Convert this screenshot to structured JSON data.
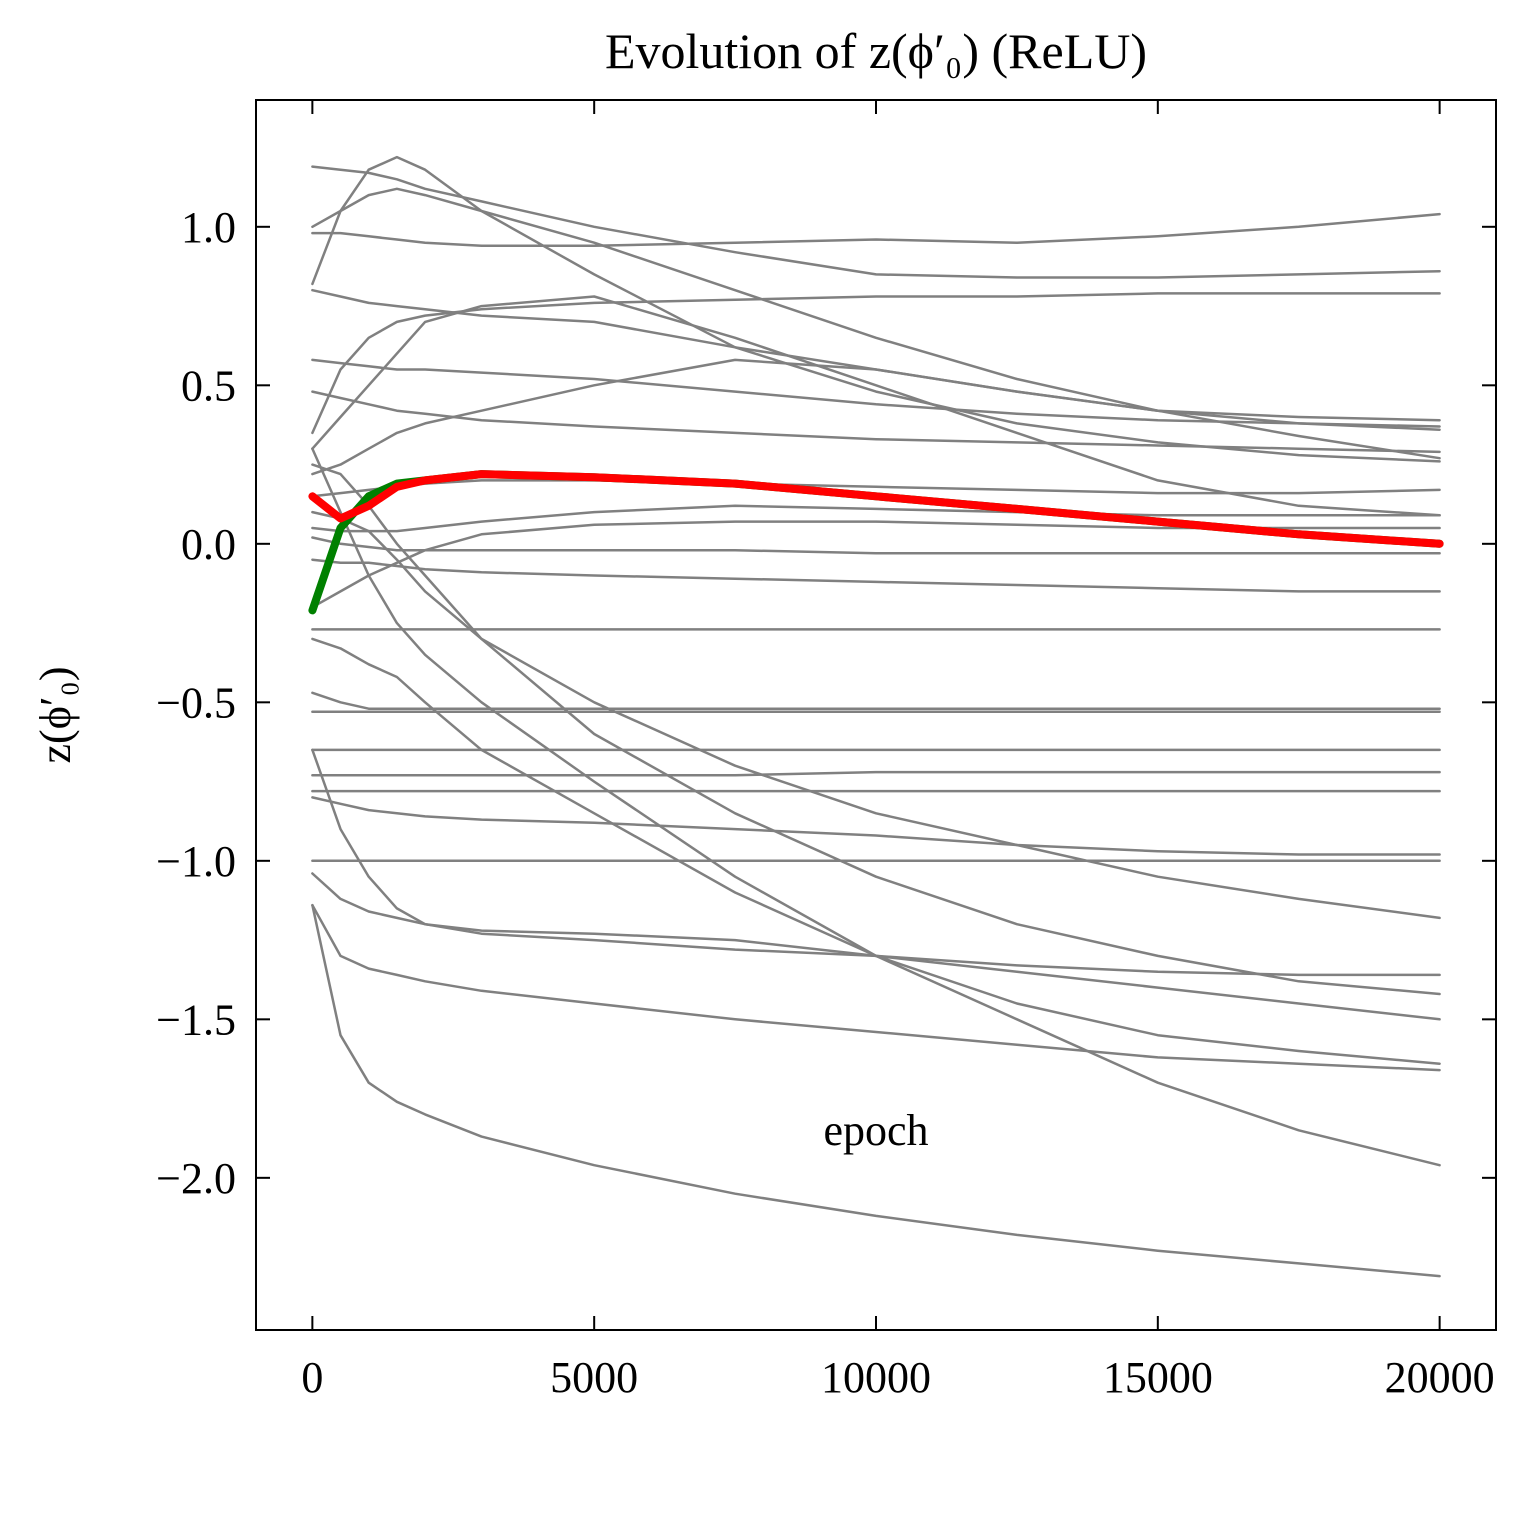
{
  "chart_data": {
    "type": "line",
    "title": "Evolution of z(ϕ′₀) (ReLU)",
    "xlabel": "epoch",
    "ylabel": "z(ϕ′₀)",
    "x": [
      0,
      500,
      1000,
      1500,
      2000,
      3000,
      5000,
      7500,
      10000,
      12500,
      15000,
      17500,
      20000
    ],
    "xlim": [
      -1000,
      21000
    ],
    "xticks": [
      0,
      5000,
      10000,
      15000,
      20000
    ],
    "ylim": [
      -2.48,
      1.4
    ],
    "yticks": [
      {
        "value": -2.0,
        "label": "−2.0"
      },
      {
        "value": -1.5,
        "label": "−1.5"
      },
      {
        "value": -1.0,
        "label": "−1.0"
      },
      {
        "value": -0.5,
        "label": "−0.5"
      },
      {
        "value": 0.0,
        "label": "0.0"
      },
      {
        "value": 0.5,
        "label": "0.5"
      },
      {
        "value": 1.0,
        "label": "1.0"
      }
    ],
    "grid": false,
    "series": [
      {
        "color": "#808080",
        "values": [
          1.19,
          1.18,
          1.17,
          1.15,
          1.12,
          1.08,
          1.0,
          0.92,
          0.85,
          0.84,
          0.84,
          0.85,
          0.86
        ]
      },
      {
        "color": "#808080",
        "values": [
          0.98,
          0.98,
          0.97,
          0.96,
          0.95,
          0.94,
          0.94,
          0.95,
          0.96,
          0.95,
          0.97,
          1.0,
          1.04
        ]
      },
      {
        "color": "#808080",
        "values": [
          0.82,
          1.05,
          1.18,
          1.22,
          1.18,
          1.05,
          0.85,
          0.62,
          0.48,
          0.38,
          0.32,
          0.28,
          0.26
        ]
      },
      {
        "color": "#808080",
        "values": [
          0.8,
          0.78,
          0.76,
          0.75,
          0.74,
          0.72,
          0.7,
          0.62,
          0.55,
          0.48,
          0.42,
          0.38,
          0.36
        ]
      },
      {
        "color": "#808080",
        "values": [
          0.35,
          0.55,
          0.65,
          0.7,
          0.72,
          0.74,
          0.76,
          0.77,
          0.78,
          0.78,
          0.79,
          0.79,
          0.79
        ]
      },
      {
        "color": "#808080",
        "values": [
          0.58,
          0.57,
          0.56,
          0.55,
          0.55,
          0.54,
          0.52,
          0.48,
          0.44,
          0.41,
          0.39,
          0.38,
          0.37
        ]
      },
      {
        "color": "#808080",
        "values": [
          0.48,
          0.46,
          0.44,
          0.42,
          0.41,
          0.39,
          0.37,
          0.35,
          0.33,
          0.32,
          0.31,
          0.3,
          0.29
        ]
      },
      {
        "color": "#808080",
        "values": [
          0.22,
          0.25,
          0.3,
          0.35,
          0.38,
          0.42,
          0.5,
          0.58,
          0.55,
          0.48,
          0.42,
          0.4,
          0.39
        ]
      },
      {
        "color": "#808080",
        "values": [
          0.15,
          0.16,
          0.17,
          0.18,
          0.19,
          0.2,
          0.2,
          0.19,
          0.18,
          0.17,
          0.16,
          0.16,
          0.17
        ]
      },
      {
        "color": "#808080",
        "values": [
          0.05,
          0.04,
          0.04,
          0.04,
          0.05,
          0.07,
          0.1,
          0.12,
          0.11,
          0.1,
          0.09,
          0.09,
          0.09
        ]
      },
      {
        "color": "#808080",
        "values": [
          0.02,
          0.0,
          -0.01,
          -0.02,
          -0.02,
          -0.02,
          -0.02,
          -0.02,
          -0.03,
          -0.03,
          -0.03,
          -0.03,
          -0.03
        ]
      },
      {
        "color": "#808080",
        "values": [
          -0.05,
          -0.06,
          -0.06,
          -0.07,
          -0.08,
          -0.09,
          -0.1,
          -0.11,
          -0.12,
          -0.13,
          -0.14,
          -0.15,
          -0.15
        ]
      },
      {
        "color": "#808080",
        "values": [
          -0.27,
          -0.27,
          -0.27,
          -0.27,
          -0.27,
          -0.27,
          -0.27,
          -0.27,
          -0.27,
          -0.27,
          -0.27,
          -0.27,
          -0.27
        ]
      },
      {
        "color": "#808080",
        "values": [
          -0.2,
          -0.15,
          -0.1,
          -0.06,
          -0.02,
          0.03,
          0.06,
          0.07,
          0.07,
          0.06,
          0.05,
          0.05,
          0.05
        ]
      },
      {
        "color": "#808080",
        "values": [
          0.25,
          0.22,
          0.12,
          0.0,
          -0.1,
          -0.3,
          -0.6,
          -0.85,
          -1.05,
          -1.2,
          -1.3,
          -1.38,
          -1.42
        ]
      },
      {
        "color": "#808080",
        "values": [
          -0.3,
          -0.33,
          -0.38,
          -0.42,
          -0.5,
          -0.65,
          -0.85,
          -1.1,
          -1.3,
          -1.45,
          -1.55,
          -1.6,
          -1.64
        ]
      },
      {
        "color": "#808080",
        "values": [
          -0.47,
          -0.5,
          -0.52,
          -0.52,
          -0.52,
          -0.52,
          -0.52,
          -0.52,
          -0.52,
          -0.52,
          -0.52,
          -0.52,
          -0.52
        ]
      },
      {
        "color": "#808080",
        "values": [
          -0.53,
          -0.53,
          -0.53,
          -0.53,
          -0.53,
          -0.53,
          -0.53,
          -0.53,
          -0.53,
          -0.53,
          -0.53,
          -0.53,
          -0.53
        ]
      },
      {
        "color": "#808080",
        "values": [
          -0.65,
          -0.65,
          -0.65,
          -0.65,
          -0.65,
          -0.65,
          -0.65,
          -0.65,
          -0.65,
          -0.65,
          -0.65,
          -0.65,
          -0.65
        ]
      },
      {
        "color": "#808080",
        "values": [
          -0.73,
          -0.73,
          -0.73,
          -0.73,
          -0.73,
          -0.73,
          -0.73,
          -0.73,
          -0.72,
          -0.72,
          -0.72,
          -0.72,
          -0.72
        ]
      },
      {
        "color": "#808080",
        "values": [
          -0.78,
          -0.78,
          -0.78,
          -0.78,
          -0.78,
          -0.78,
          -0.78,
          -0.78,
          -0.78,
          -0.78,
          -0.78,
          -0.78,
          -0.78
        ]
      },
      {
        "color": "#808080",
        "values": [
          -1.0,
          -1.0,
          -1.0,
          -1.0,
          -1.0,
          -1.0,
          -1.0,
          -1.0,
          -1.0,
          -1.0,
          -1.0,
          -1.0,
          -1.0
        ]
      },
      {
        "color": "#808080",
        "values": [
          -0.8,
          -0.82,
          -0.84,
          -0.85,
          -0.86,
          -0.87,
          -0.88,
          -0.9,
          -0.92,
          -0.95,
          -0.97,
          -0.98,
          -0.98
        ]
      },
      {
        "color": "#808080",
        "values": [
          -1.04,
          -1.12,
          -1.16,
          -1.18,
          -1.2,
          -1.23,
          -1.25,
          -1.28,
          -1.3,
          -1.33,
          -1.35,
          -1.36,
          -1.36
        ]
      },
      {
        "color": "#808080",
        "values": [
          -1.14,
          -1.3,
          -1.34,
          -1.36,
          -1.38,
          -1.41,
          -1.45,
          -1.5,
          -1.54,
          -1.58,
          -1.62,
          -1.64,
          -1.66
        ]
      },
      {
        "color": "#808080",
        "values": [
          -1.14,
          -1.55,
          -1.7,
          -1.76,
          -1.8,
          -1.87,
          -1.96,
          -2.05,
          -2.12,
          -2.18,
          -2.23,
          -2.27,
          -2.31
        ]
      },
      {
        "color": "#808080",
        "values": [
          0.3,
          0.1,
          -0.1,
          -0.25,
          -0.35,
          -0.5,
          -0.75,
          -1.05,
          -1.3,
          -1.5,
          -1.7,
          -1.85,
          -1.96
        ]
      },
      {
        "color": "#808080",
        "values": [
          0.1,
          0.08,
          0.04,
          -0.05,
          -0.15,
          -0.3,
          -0.5,
          -0.7,
          -0.85,
          -0.95,
          -1.05,
          -1.12,
          -1.18
        ]
      },
      {
        "color": "#808080",
        "values": [
          1.0,
          1.05,
          1.1,
          1.12,
          1.1,
          1.05,
          0.95,
          0.8,
          0.65,
          0.52,
          0.42,
          0.34,
          0.27
        ]
      },
      {
        "color": "#808080",
        "values": [
          -0.65,
          -0.9,
          -1.05,
          -1.15,
          -1.2,
          -1.22,
          -1.23,
          -1.25,
          -1.3,
          -1.35,
          -1.4,
          -1.45,
          -1.5
        ]
      },
      {
        "color": "#808080",
        "values": [
          0.3,
          0.4,
          0.5,
          0.6,
          0.7,
          0.75,
          0.78,
          0.65,
          0.5,
          0.35,
          0.2,
          0.12,
          0.09
        ]
      },
      {
        "color": "#008000",
        "values": [
          -0.21,
          0.05,
          0.15,
          0.19,
          0.2,
          0.22,
          0.21,
          0.19,
          0.15,
          0.11,
          0.07,
          0.03,
          0.0
        ]
      },
      {
        "color": "#ff0000",
        "values": [
          0.15,
          0.08,
          0.12,
          0.18,
          0.2,
          0.22,
          0.21,
          0.19,
          0.15,
          0.11,
          0.07,
          0.03,
          0.0
        ]
      }
    ]
  }
}
